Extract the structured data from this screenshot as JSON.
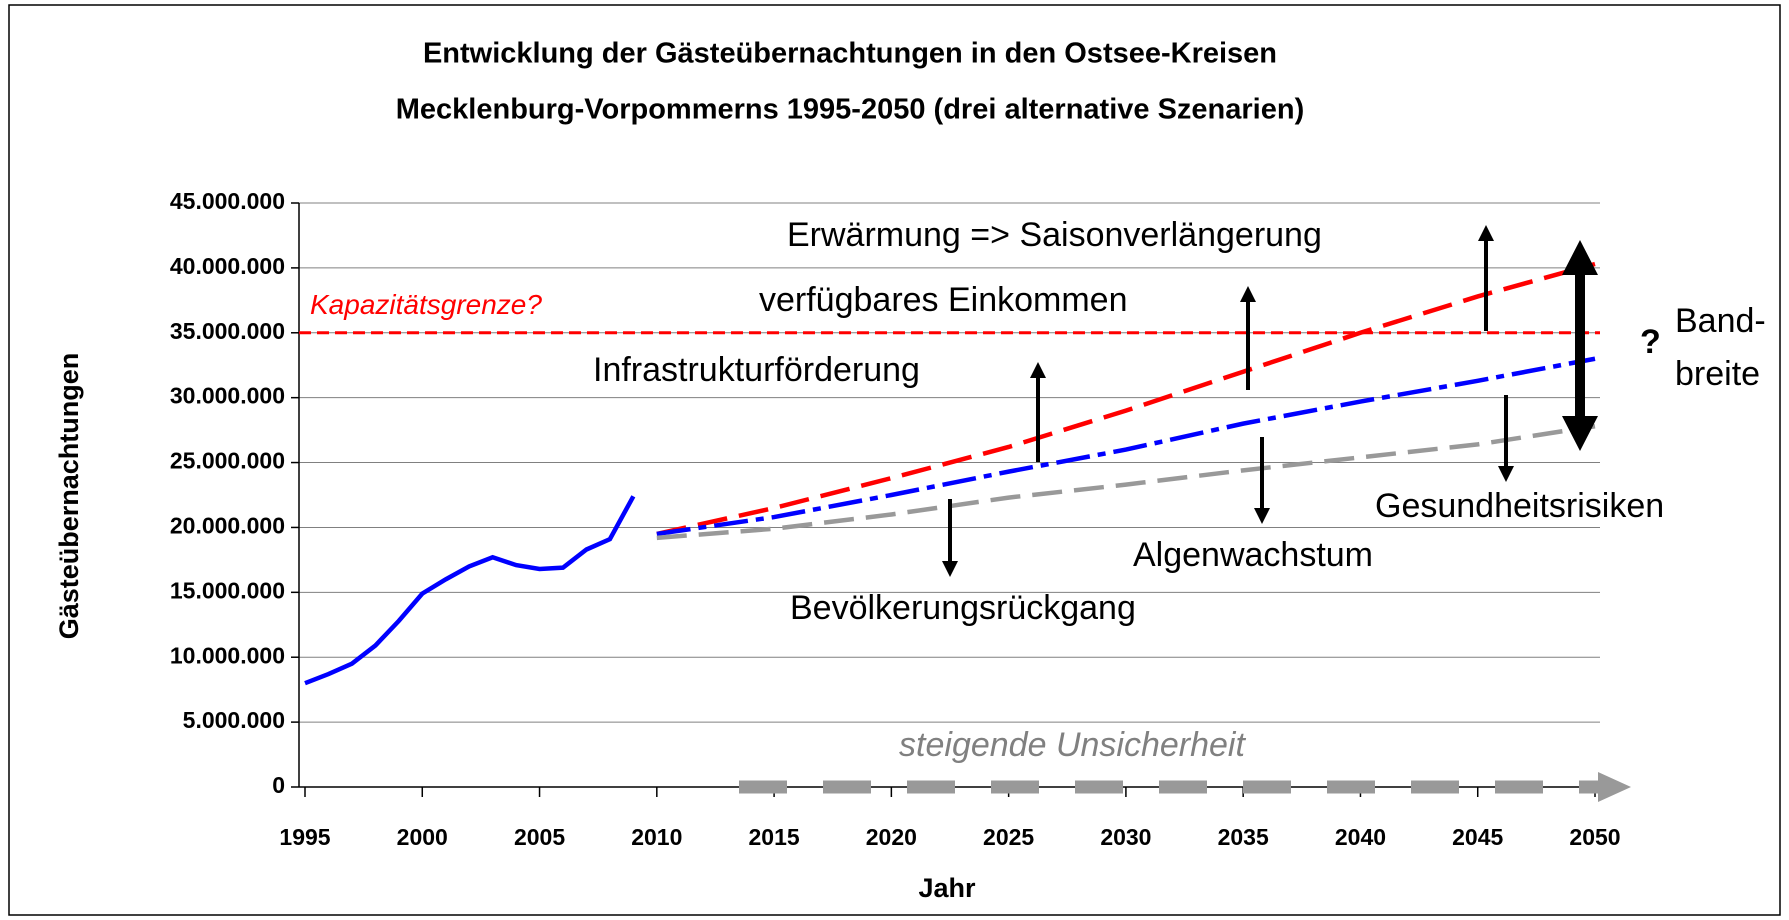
{
  "chart_data": {
    "type": "line",
    "title": [
      "Entwicklung der Gästeübernachtungen in den Ostsee-Kreisen",
      "Mecklenburg-Vorpommerns 1995-2050  (drei alternative Szenarien)"
    ],
    "x_label": "Jahr",
    "y_label": "Gästeübernachtungen",
    "xlim": [
      1995,
      2050
    ],
    "xticks": [
      1995,
      2000,
      2005,
      2010,
      2015,
      2020,
      2025,
      2030,
      2035,
      2040,
      2045,
      2050
    ],
    "ylim": [
      0,
      45000000
    ],
    "yticks": [
      0,
      {
        "value": 5000000,
        "label": "5.000.000"
      },
      {
        "value": 10000000,
        "label": "10.000.000"
      },
      {
        "value": 15000000,
        "label": "15.000.000"
      },
      {
        "value": 20000000,
        "label": "20.000.000"
      },
      {
        "value": 25000000,
        "label": "25.000.000"
      },
      {
        "value": 30000000,
        "label": "30.000.000"
      },
      {
        "value": 35000000,
        "label": "35.000.000"
      },
      {
        "value": 40000000,
        "label": "40.000.000"
      },
      {
        "value": 45000000,
        "label": "45.000.000"
      }
    ],
    "grid": true,
    "series": [
      {
        "color": "#0000ff",
        "dash": "none",
        "x": [
          1995,
          1996,
          1997,
          1998,
          1999,
          2000,
          2001,
          2002,
          2003,
          2004,
          2005,
          2006,
          2007,
          2008,
          2009
        ],
        "values": [
          8000000,
          8700000,
          9500000,
          10900000,
          12800000,
          14900000,
          16000000,
          17000000,
          17700000,
          17100000,
          16800000,
          16900000,
          18300000,
          19100000,
          22400000
        ]
      },
      {
        "color": "#ff0000",
        "dash": "30 12",
        "x": [
          2010,
          2015,
          2020,
          2025,
          2030,
          2035,
          2040,
          2045,
          2050
        ],
        "values": [
          19500000,
          21500000,
          23800000,
          26200000,
          29000000,
          32000000,
          35000000,
          37800000,
          40300000
        ]
      },
      {
        "color": "#0000ff",
        "dash": "34 8 8 8",
        "x": [
          2010,
          2015,
          2020,
          2025,
          2030,
          2035,
          2040,
          2045,
          2050
        ],
        "values": [
          19500000,
          20800000,
          22500000,
          24300000,
          26000000,
          28000000,
          29700000,
          31300000,
          33000000
        ]
      },
      {
        "color": "#999999",
        "dash": "30 12",
        "x": [
          2010,
          2015,
          2020,
          2025,
          2030,
          2035,
          2040,
          2045,
          2050
        ],
        "values": [
          19200000,
          19900000,
          21000000,
          22300000,
          23300000,
          24400000,
          25400000,
          26400000,
          27800000
        ]
      }
    ],
    "reference_line": {
      "value": 35000000,
      "label": "Kapazitätsgrenze?",
      "color": "#ff0000"
    },
    "annotations": [
      "Erwärmung => Saisonverlängerung",
      "verfügbares Einkommen",
      "Infrastrukturförderung",
      "Bevölkerungsrückgang",
      "Algenwachstum",
      "Gesundheitsrisiken",
      "?",
      "Band-",
      "breite",
      "steigende Unsicherheit"
    ]
  }
}
